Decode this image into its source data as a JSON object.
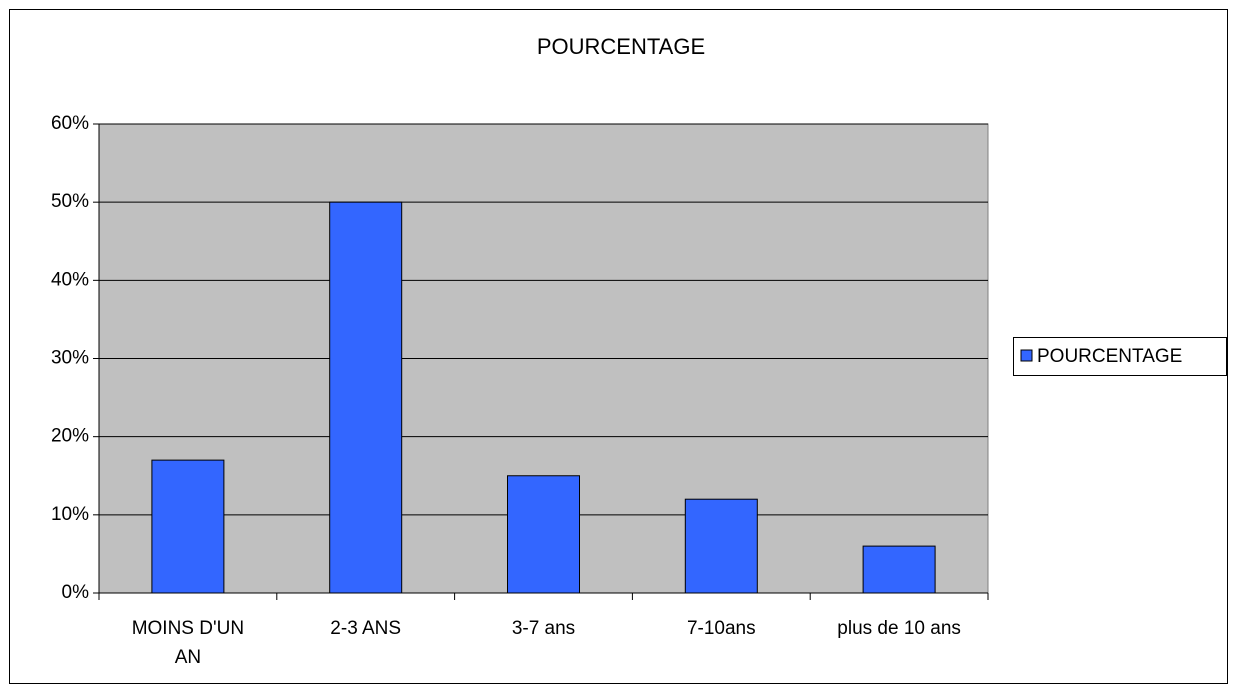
{
  "chart_data": {
    "type": "bar",
    "title": "POURCENTAGE",
    "categories": [
      "MOINS D'UN AN",
      "2-3 ANS",
      "3-7 ans",
      "7-10ans",
      "plus de 10 ans"
    ],
    "series": [
      {
        "name": "POURCENTAGE",
        "color": "#3366ff",
        "values": [
          17,
          50,
          15,
          12,
          6
        ]
      }
    ],
    "ylim": [
      0,
      60
    ],
    "yticks": [
      {
        "value": 0,
        "label": "0%"
      },
      {
        "value": 10,
        "label": "10%"
      },
      {
        "value": 20,
        "label": "20%"
      },
      {
        "value": 30,
        "label": "30%"
      },
      {
        "value": 40,
        "label": "40%"
      },
      {
        "value": 50,
        "label": "50%"
      },
      {
        "value": 60,
        "label": "60%"
      }
    ],
    "grid": true,
    "legend": "right",
    "plot_background": "#c0c0c0"
  }
}
